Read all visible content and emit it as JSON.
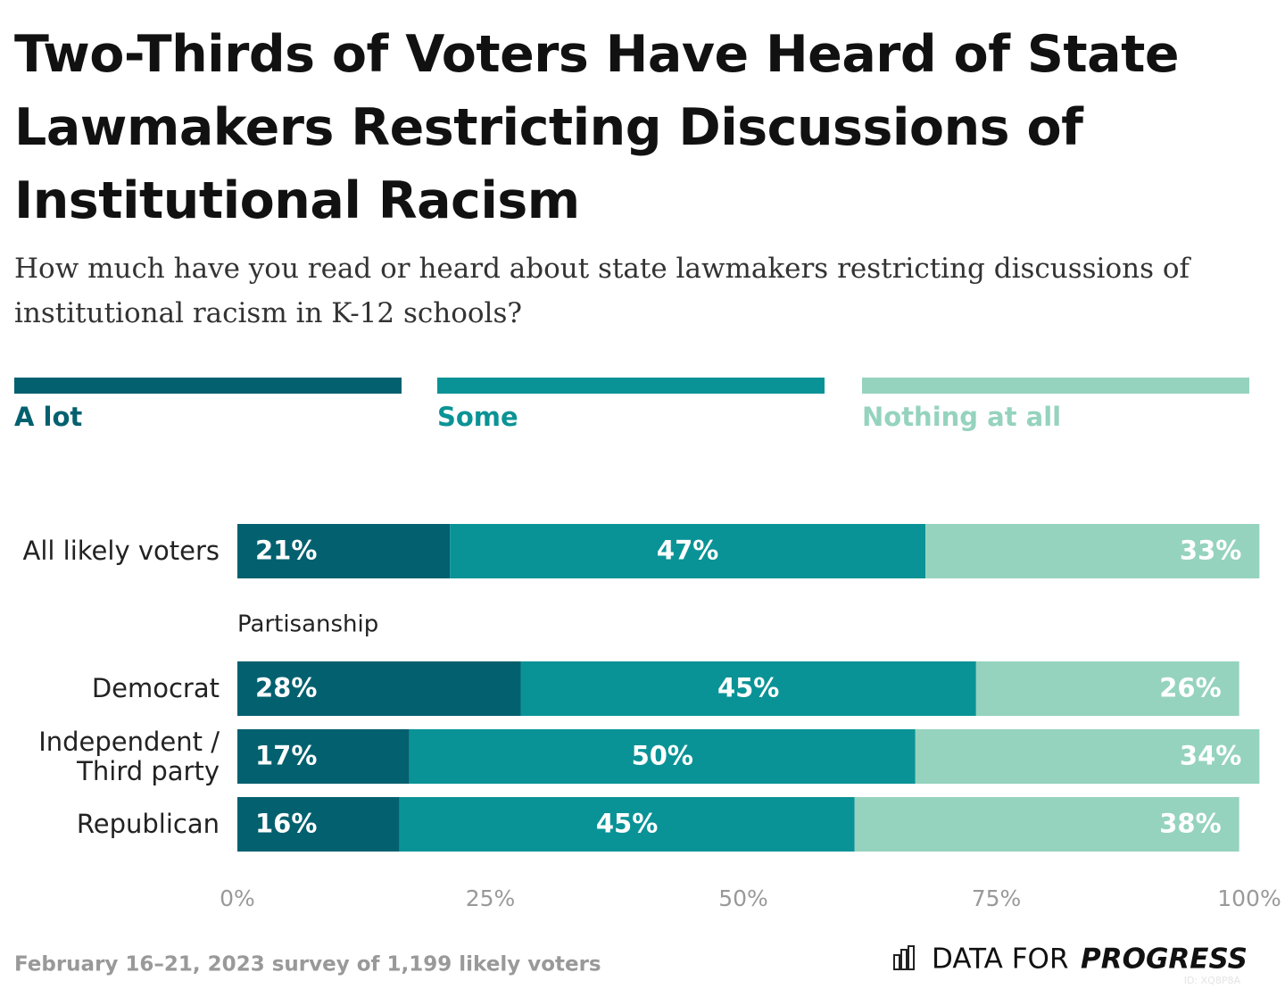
{
  "chart_data": {
    "type": "bar",
    "orientation": "horizontal",
    "stacked": true,
    "title": "Two-Thirds of Voters Have Heard of State Lawmakers Restricting Discussions of Institutional Racism",
    "subtitle": "How much have you read or heard about state lawmakers restricting discussions of institutional racism in K-12 schools?",
    "categories": [
      "All likely voters",
      "Democrat",
      "Independent / Third party",
      "Republican"
    ],
    "group_label": "Partisanship",
    "series": [
      {
        "name": "A lot",
        "color": "#02606f",
        "values": [
          21,
          28,
          17,
          16
        ],
        "value_labels": [
          "21%",
          "28%",
          "17%",
          "16%"
        ]
      },
      {
        "name": "Some",
        "color": "#0a9396",
        "values": [
          47,
          45,
          50,
          45
        ],
        "value_labels": [
          "47%",
          "45%",
          "50%",
          "45%"
        ]
      },
      {
        "name": "Nothing at all",
        "color": "#95d3be",
        "values": [
          33,
          26,
          34,
          38
        ],
        "value_labels": [
          "33%",
          "26%",
          "34%",
          "38%"
        ]
      }
    ],
    "xlim": [
      0,
      100
    ],
    "xticks": [
      {
        "value": 0,
        "label": "0%"
      },
      {
        "value": 25,
        "label": "25%"
      },
      {
        "value": 50,
        "label": "50%"
      },
      {
        "value": 75,
        "label": "75%"
      },
      {
        "value": 100,
        "label": "100%"
      }
    ],
    "source": "February 16–21, 2023 survey of 1,199 likely voters",
    "logo": [
      "DATA FOR",
      "PROGRESS"
    ],
    "chart_id": "ID: XQ8P8A"
  }
}
